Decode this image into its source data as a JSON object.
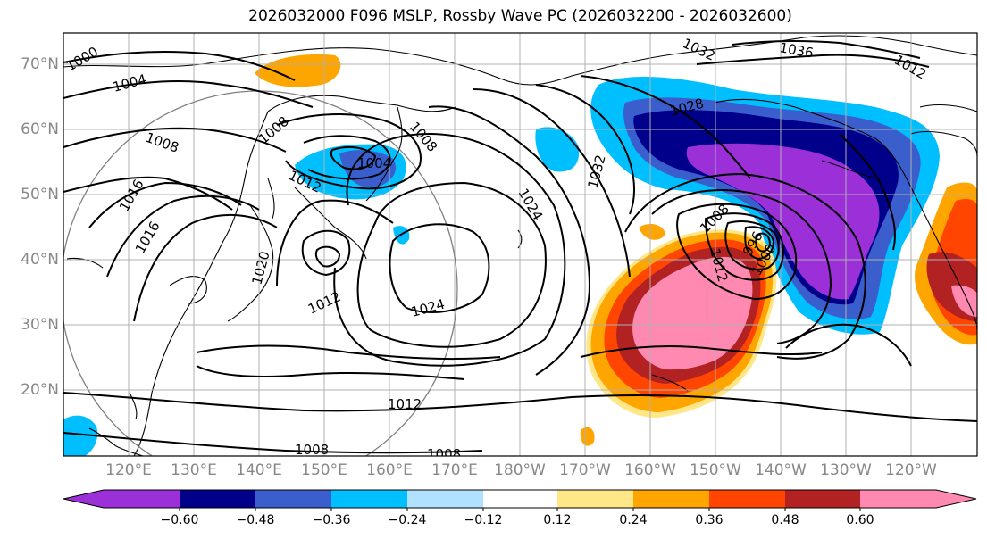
{
  "title": "2026032000 F096 MSLP, Rossby Wave PC (2026032200 - 2026032600)",
  "lat_labels": [
    "70°N",
    "60°N",
    "50°N",
    "40°N",
    "30°N",
    "20°N"
  ],
  "lon_labels": [
    "120°E",
    "130°E",
    "140°E",
    "150°E",
    "160°E",
    "170°E",
    "180°W",
    "170°W",
    "160°W",
    "150°W",
    "140°W",
    "130°W",
    "120°W"
  ],
  "isobar_labels": [
    "1000",
    "1004",
    "1008",
    "1008",
    "1016",
    "1016",
    "1008",
    "1012",
    "1004",
    "1012",
    "1020",
    "1012",
    "1024",
    "1024",
    "1032",
    "1032",
    "1036",
    "1028",
    "1008",
    "1012",
    "1000",
    "996",
    "1012",
    "1008",
    "1008"
  ],
  "colorbar": {
    "ticks": [
      "−0.60",
      "−0.48",
      "−0.36",
      "−0.24",
      "−0.12",
      "0.12",
      "0.24",
      "0.36",
      "0.48",
      "0.60"
    ],
    "colors": [
      "#9b30d9",
      "#00008b",
      "#3a5fcd",
      "#00bfff",
      "#b0e2ff",
      "#ffffff",
      "#ffe787",
      "#ffa500",
      "#ff4500",
      "#b22222",
      "#ff89b0",
      "#ff89b0"
    ]
  }
}
